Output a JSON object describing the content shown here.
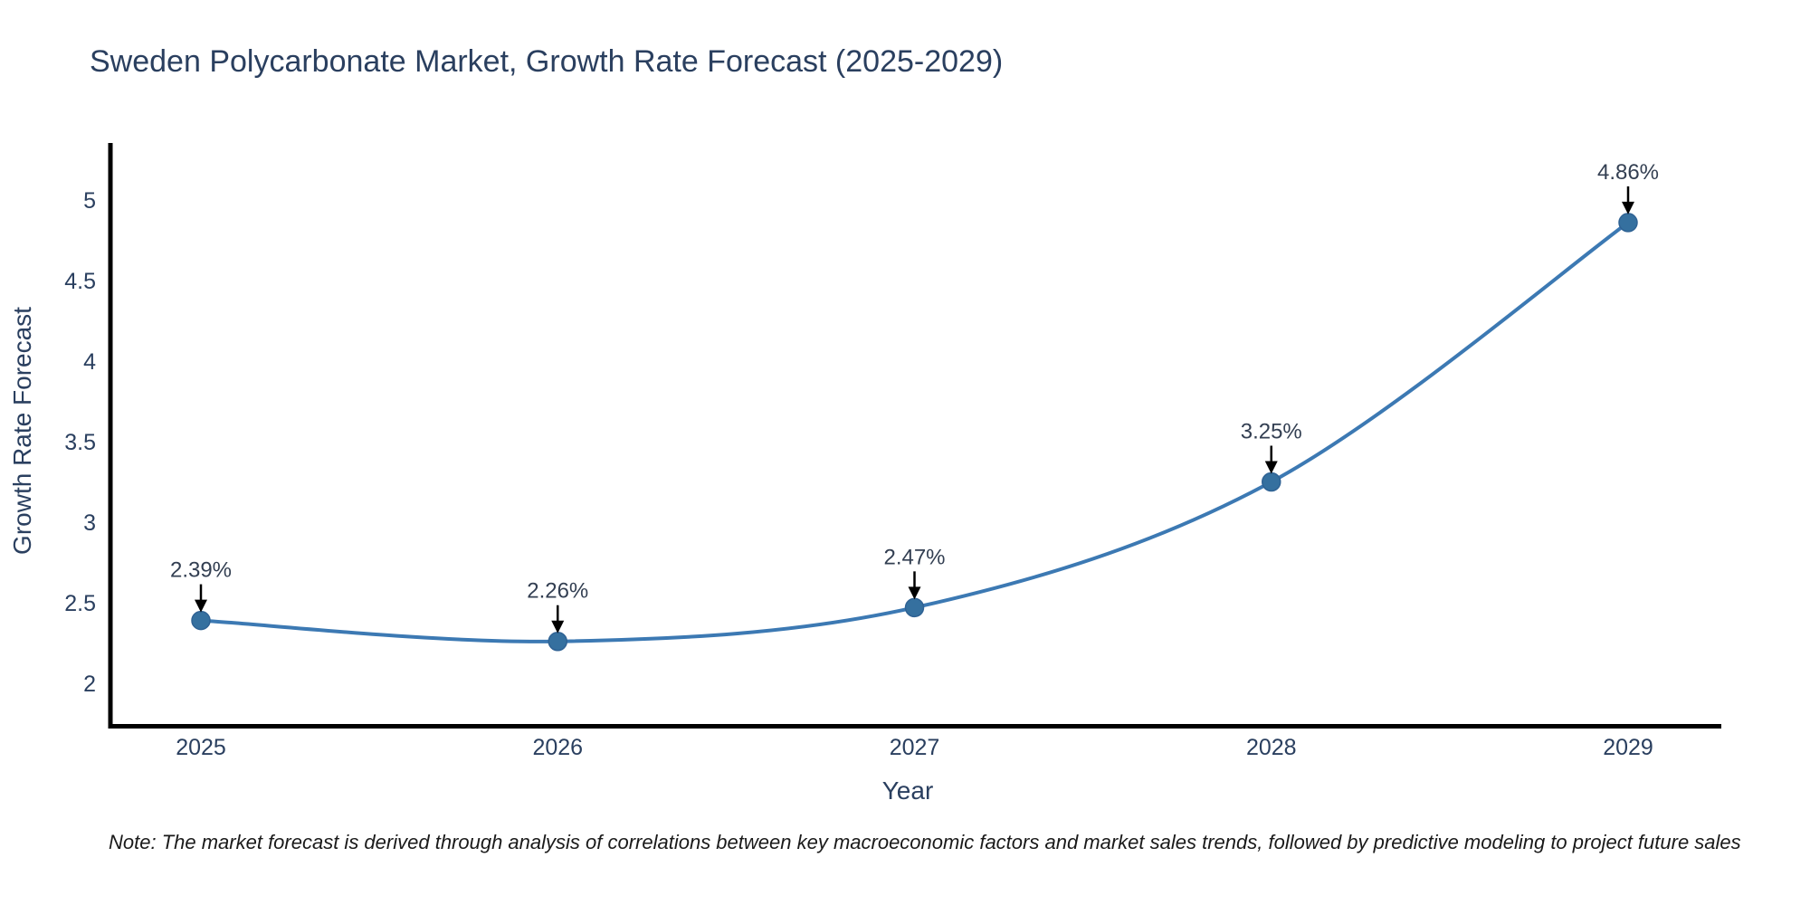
{
  "note": "Note: The market forecast is derived through analysis of correlations between key macroeconomic factors and market sales trends, followed by predictive modeling to project future sales",
  "chart_data": {
    "type": "line",
    "title": "Sweden Polycarbonate Market, Growth Rate Forecast (2025-2029)",
    "xlabel": "Year",
    "ylabel": "Growth Rate Forecast",
    "x": [
      2025,
      2026,
      2027,
      2028,
      2029
    ],
    "series": [
      {
        "name": "Growth Rate Forecast",
        "values": [
          2.39,
          2.26,
          2.47,
          3.25,
          4.86
        ]
      }
    ],
    "point_labels": [
      "2.39%",
      "2.26%",
      "2.47%",
      "3.25%",
      "4.86%"
    ],
    "y_ticks": [
      2,
      2.5,
      3,
      3.5,
      4,
      4.5,
      5
    ],
    "ylim": [
      1.73,
      5.35
    ],
    "xlim": [
      2024.75,
      2029.26
    ],
    "grid": false,
    "legend": "none",
    "line_shape": "spline",
    "colors": {
      "line": "#3c79b3",
      "marker": "#35709f",
      "marker_edge": "#2f6294",
      "axis": "#000000",
      "text": "#2a3f5f",
      "annotation": "#333f52",
      "arrow": "#000000",
      "note": "#1a1a1a",
      "background": "#ffffff"
    }
  }
}
